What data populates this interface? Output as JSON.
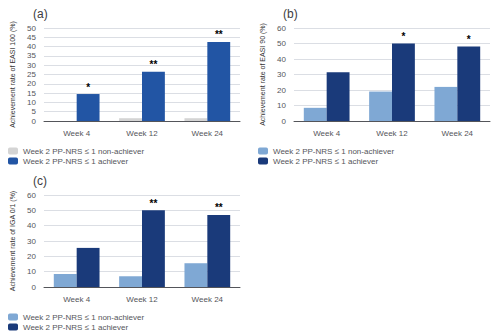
{
  "chart_data": [
    {
      "type": "bar",
      "title": "(a)",
      "ylabel": "Achievement rate of EASI 100 (%)",
      "categories": [
        "Week 4",
        "Week 12",
        "Week 24"
      ],
      "series": [
        {
          "name": "Week 2 PP-NRS ≤ 1 non-achiever",
          "color": "#d4d4d4",
          "values": [
            0.0,
            1.5,
            1.5
          ]
        },
        {
          "name": "Week 2 PP-NRS ≤ 1 achiever",
          "color": "#2255a4",
          "values": [
            14.5,
            26.5,
            42.5
          ]
        }
      ],
      "ylim": [
        0,
        50
      ],
      "yticks": [
        0,
        5,
        10,
        15,
        20,
        25,
        30,
        35,
        40,
        45,
        50
      ],
      "grid": true,
      "legend": "bottom",
      "annotations": [
        {
          "category": "Week 4",
          "series": "Week 2 PP-NRS ≤ 1 achiever",
          "text": "*"
        },
        {
          "category": "Week 12",
          "series": "Week 2 PP-NRS ≤ 1 achiever",
          "text": "**"
        },
        {
          "category": "Week 24",
          "series": "Week 2 PP-NRS ≤ 1 achiever",
          "text": "**"
        }
      ]
    },
    {
      "type": "bar",
      "title": "(b)",
      "ylabel": "Achievement rate of EASI 90 (%)",
      "categories": [
        "Week 4",
        "Week 12",
        "Week 24"
      ],
      "series": [
        {
          "name": "Week 2 PP-NRS ≤ 1 non-achiever",
          "color": "#7fa8d4",
          "values": [
            8.5,
            19.0,
            22.0
          ]
        },
        {
          "name": "Week 2 PP-NRS ≤ 1 achiever",
          "color": "#1a3a7a",
          "values": [
            31.5,
            50.0,
            48.0
          ]
        }
      ],
      "ylim": [
        0,
        60
      ],
      "yticks": [
        0,
        10,
        20,
        30,
        40,
        50,
        60
      ],
      "grid": true,
      "legend": "bottom",
      "annotations": [
        {
          "category": "Week 12",
          "series": "Week 2 PP-NRS ≤ 1 achiever",
          "text": "*"
        },
        {
          "category": "Week 24",
          "series": "Week 2 PP-NRS ≤ 1 achiever",
          "text": "*"
        }
      ]
    },
    {
      "type": "bar",
      "title": "(c)",
      "ylabel": "Achievement rate of IGA 0/1 (%)",
      "categories": [
        "Week 4",
        "Week 12",
        "Week 24"
      ],
      "series": [
        {
          "name": "Week 2 PP-NRS ≤ 1 non-achiever",
          "color": "#7fa8d4",
          "values": [
            8.5,
            7.0,
            15.5
          ]
        },
        {
          "name": "Week 2 PP-NRS ≤ 1 achiever",
          "color": "#1a3a7a",
          "values": [
            25.5,
            50.0,
            47.0
          ]
        }
      ],
      "ylim": [
        0,
        60
      ],
      "yticks": [
        0,
        10,
        20,
        30,
        40,
        50,
        60
      ],
      "grid": true,
      "legend": "bottom",
      "annotations": [
        {
          "category": "Week 12",
          "series": "Week 2 PP-NRS ≤ 1 achiever",
          "text": "**"
        },
        {
          "category": "Week 24",
          "series": "Week 2 PP-NRS ≤ 1 achiever",
          "text": "**"
        }
      ]
    }
  ]
}
